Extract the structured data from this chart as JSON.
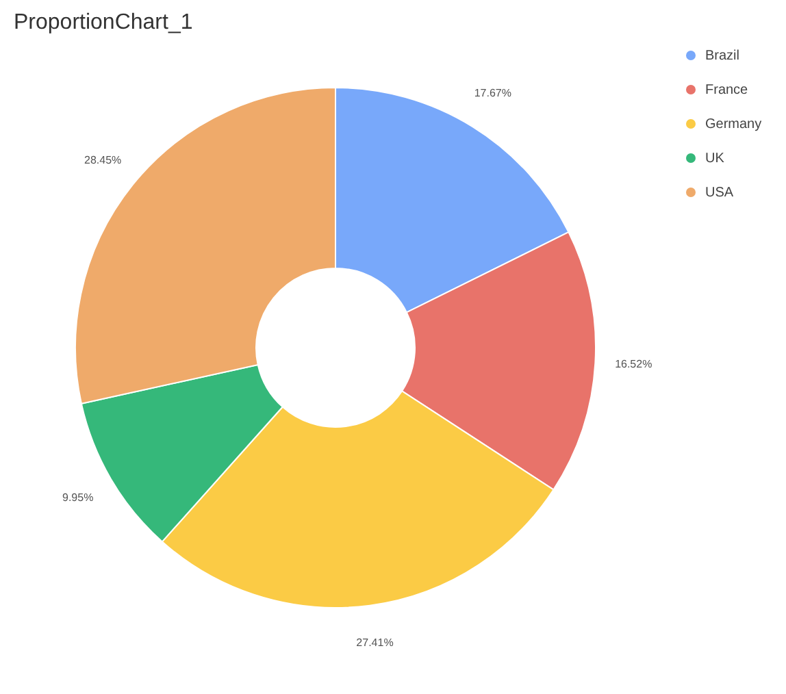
{
  "chart_data": {
    "type": "donut",
    "title": "ProportionChart_1",
    "categories": [
      "Brazil",
      "France",
      "Germany",
      "UK",
      "USA"
    ],
    "values": [
      17.67,
      16.52,
      27.41,
      9.95,
      28.45
    ],
    "value_labels": [
      "17.67%",
      "16.52%",
      "27.41%",
      "9.95%",
      "28.45%"
    ],
    "colors": [
      "#78a8fa",
      "#e8736a",
      "#fbcb45",
      "#35b87a",
      "#efaa6a"
    ],
    "legend": "right"
  }
}
